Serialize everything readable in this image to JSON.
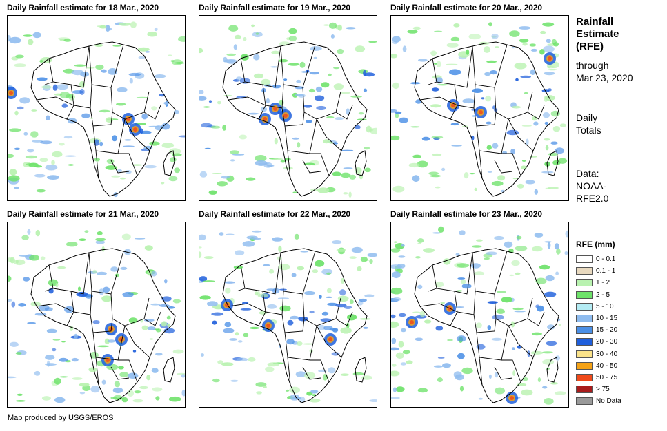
{
  "panels": [
    {
      "title": "Daily Rainfall estimate for 18 Mar., 2020",
      "date": "18 Mar., 2020"
    },
    {
      "title": "Daily Rainfall estimate for 19 Mar., 2020",
      "date": "19 Mar., 2020"
    },
    {
      "title": "Daily Rainfall estimate for 20 Mar., 2020",
      "date": "20 Mar., 2020"
    },
    {
      "title": "Daily Rainfall estimate for 21 Mar., 2020",
      "date": "21 Mar., 2020"
    },
    {
      "title": "Daily Rainfall estimate for 22 Mar., 2020",
      "date": "22 Mar., 2020"
    },
    {
      "title": "Daily Rainfall estimate for 23 Mar., 2020",
      "date": "23 Mar., 2020"
    }
  ],
  "side": {
    "title_line1": "Rainfall",
    "title_line2": "Estimate",
    "title_line3": "(RFE)",
    "through": "through",
    "through_date": "Mar 23, 2020",
    "totals_line1": "Daily",
    "totals_line2": "Totals",
    "data_line1": "Data:",
    "data_line2": "NOAA-",
    "data_line3": "RFE2.0"
  },
  "legend": {
    "title": "RFE (mm)",
    "items": [
      {
        "label": "0 - 0.1",
        "color": "#ffffff"
      },
      {
        "label": "0.1 - 1",
        "color": "#e8d9bf"
      },
      {
        "label": "1 - 2",
        "color": "#b9f2b0"
      },
      {
        "label": "2 - 5",
        "color": "#6ee26a"
      },
      {
        "label": "5 - 10",
        "color": "#b4ecf4"
      },
      {
        "label": "10 - 15",
        "color": "#8fbcef"
      },
      {
        "label": "15 - 20",
        "color": "#4a8fe6"
      },
      {
        "label": "20 - 30",
        "color": "#1f5fdc"
      },
      {
        "label": "30 - 40",
        "color": "#fbe38a"
      },
      {
        "label": "40 - 50",
        "color": "#f4a216"
      },
      {
        "label": "50 - 75",
        "color": "#f04a1a"
      },
      {
        "label": "> 75",
        "color": "#a81c1c"
      },
      {
        "label": "No Data",
        "color": "#9a9a9a"
      }
    ]
  },
  "footer": "Map produced by USGS/EROS"
}
